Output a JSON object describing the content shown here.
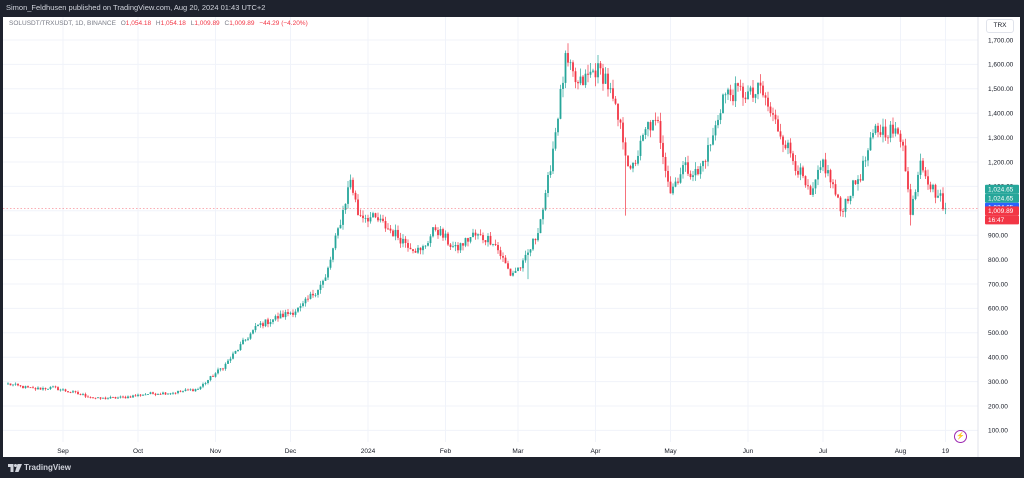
{
  "header": {
    "published": "Simon_Feldhusen published on TradingView.com, Aug 20, 2024 01:43 UTC+2"
  },
  "legend": {
    "symbol": "SOLUSDT/TRXUSDT, 1D, BINANCE",
    "o_label": "O",
    "o_value": "1,054.18",
    "h_label": "H",
    "h_value": "1,054.18",
    "l_label": "L",
    "l_value": "1,009.89",
    "c_label": "C",
    "c_value": "1,009.89",
    "change": "−44.29 (−4.20%)"
  },
  "currency_button": "TRX",
  "price_labels": [
    {
      "text": "1,024.65",
      "value": 1024.65,
      "color": "#26a69a"
    },
    {
      "text": "1,024.65",
      "value": 1024.65,
      "color": "#26a69a"
    },
    {
      "text": "1,024.65",
      "value": 1024.65,
      "color": "#2962ff"
    },
    {
      "text": "1,009.89",
      "value": 1009.89,
      "color": "#f23645"
    },
    {
      "text": "16:47",
      "value": null,
      "color": "#f23645"
    }
  ],
  "footer": {
    "brand": "TradingView"
  },
  "colors": {
    "up": "#26a69a",
    "down": "#f23645",
    "grid": "#f0f3fa"
  },
  "chart_data": {
    "type": "candlestick",
    "title": "SOLUSDT/TRXUSDT, 1D, BINANCE",
    "ylim": [
      50,
      1750
    ],
    "y_ticks": [
      100,
      200,
      300,
      400,
      500,
      600,
      700,
      800,
      900,
      1000,
      1100,
      1200,
      1300,
      1400,
      1500,
      1600,
      1700
    ],
    "y_tick_labels": [
      "100.00",
      "200.00",
      "300.00",
      "400.00",
      "500.00",
      "600.00",
      "700.00",
      "800.00",
      "900.00",
      "1,000.00",
      "1,100.00",
      "1,200.00",
      "1,300.00",
      "1,400.00",
      "1,500.00",
      "1,600.00",
      "1,700.00"
    ],
    "x_labels": [
      "Sep",
      "Oct",
      "Nov",
      "Dec",
      "2024",
      "Feb",
      "Mar",
      "Apr",
      "May",
      "Jun",
      "Jul",
      "Aug",
      "19"
    ],
    "x_label_dates": [
      "2023-09-01",
      "2023-10-01",
      "2023-11-01",
      "2023-12-01",
      "2024-01-01",
      "2024-02-01",
      "2024-03-01",
      "2024-04-01",
      "2024-05-01",
      "2024-06-01",
      "2024-07-01",
      "2024-08-01",
      "2024-08-19"
    ],
    "range": [
      "2023-08-10",
      "2024-08-19"
    ],
    "last_close": 1009.89,
    "close_anchors": [
      [
        "2023-08-10",
        290
      ],
      [
        "2023-08-20",
        270
      ],
      [
        "2023-08-28",
        275
      ],
      [
        "2023-09-05",
        255
      ],
      [
        "2023-09-15",
        230
      ],
      [
        "2023-09-25",
        235
      ],
      [
        "2023-10-05",
        250
      ],
      [
        "2023-10-15",
        255
      ],
      [
        "2023-10-25",
        270
      ],
      [
        "2023-11-05",
        370
      ],
      [
        "2023-11-12",
        460
      ],
      [
        "2023-11-18",
        530
      ],
      [
        "2023-11-25",
        560
      ],
      [
        "2023-12-05",
        600
      ],
      [
        "2023-12-15",
        720
      ],
      [
        "2023-12-22",
        1000
      ],
      [
        "2023-12-25",
        1130
      ],
      [
        "2023-12-28",
        990
      ],
      [
        "2024-01-05",
        960
      ],
      [
        "2024-01-15",
        880
      ],
      [
        "2024-01-22",
        830
      ],
      [
        "2024-01-28",
        930
      ],
      [
        "2024-02-05",
        840
      ],
      [
        "2024-02-12",
        900
      ],
      [
        "2024-02-20",
        880
      ],
      [
        "2024-02-27",
        740
      ],
      [
        "2024-03-03",
        780
      ],
      [
        "2024-03-08",
        890
      ],
      [
        "2024-03-12",
        1050
      ],
      [
        "2024-03-17",
        1400
      ],
      [
        "2024-03-20",
        1610
      ],
      [
        "2024-03-25",
        1510
      ],
      [
        "2024-04-01",
        1580
      ],
      [
        "2024-04-05",
        1550
      ],
      [
        "2024-04-12",
        1300
      ],
      [
        "2024-04-15",
        1150
      ],
      [
        "2024-04-22",
        1350
      ],
      [
        "2024-04-26",
        1350
      ],
      [
        "2024-05-01",
        1080
      ],
      [
        "2024-05-06",
        1180
      ],
      [
        "2024-05-12",
        1150
      ],
      [
        "2024-05-18",
        1300
      ],
      [
        "2024-05-22",
        1470
      ],
      [
        "2024-05-28",
        1490
      ],
      [
        "2024-06-03",
        1470
      ],
      [
        "2024-06-06",
        1500
      ],
      [
        "2024-06-10",
        1400
      ],
      [
        "2024-06-15",
        1300
      ],
      [
        "2024-06-22",
        1150
      ],
      [
        "2024-06-26",
        1050
      ],
      [
        "2024-07-01",
        1200
      ],
      [
        "2024-07-05",
        1100
      ],
      [
        "2024-07-08",
        1000
      ],
      [
        "2024-07-12",
        1080
      ],
      [
        "2024-07-16",
        1150
      ],
      [
        "2024-07-22",
        1330
      ],
      [
        "2024-07-28",
        1330
      ],
      [
        "2024-08-02",
        1290
      ],
      [
        "2024-08-05",
        980
      ],
      [
        "2024-08-09",
        1220
      ],
      [
        "2024-08-13",
        1100
      ],
      [
        "2024-08-17",
        1050
      ],
      [
        "2024-08-19",
        1009.89
      ]
    ],
    "notable_wicks": [
      [
        "2024-03-05",
        720
      ],
      [
        "2024-04-13",
        980
      ],
      [
        "2024-08-05",
        940
      ]
    ]
  }
}
